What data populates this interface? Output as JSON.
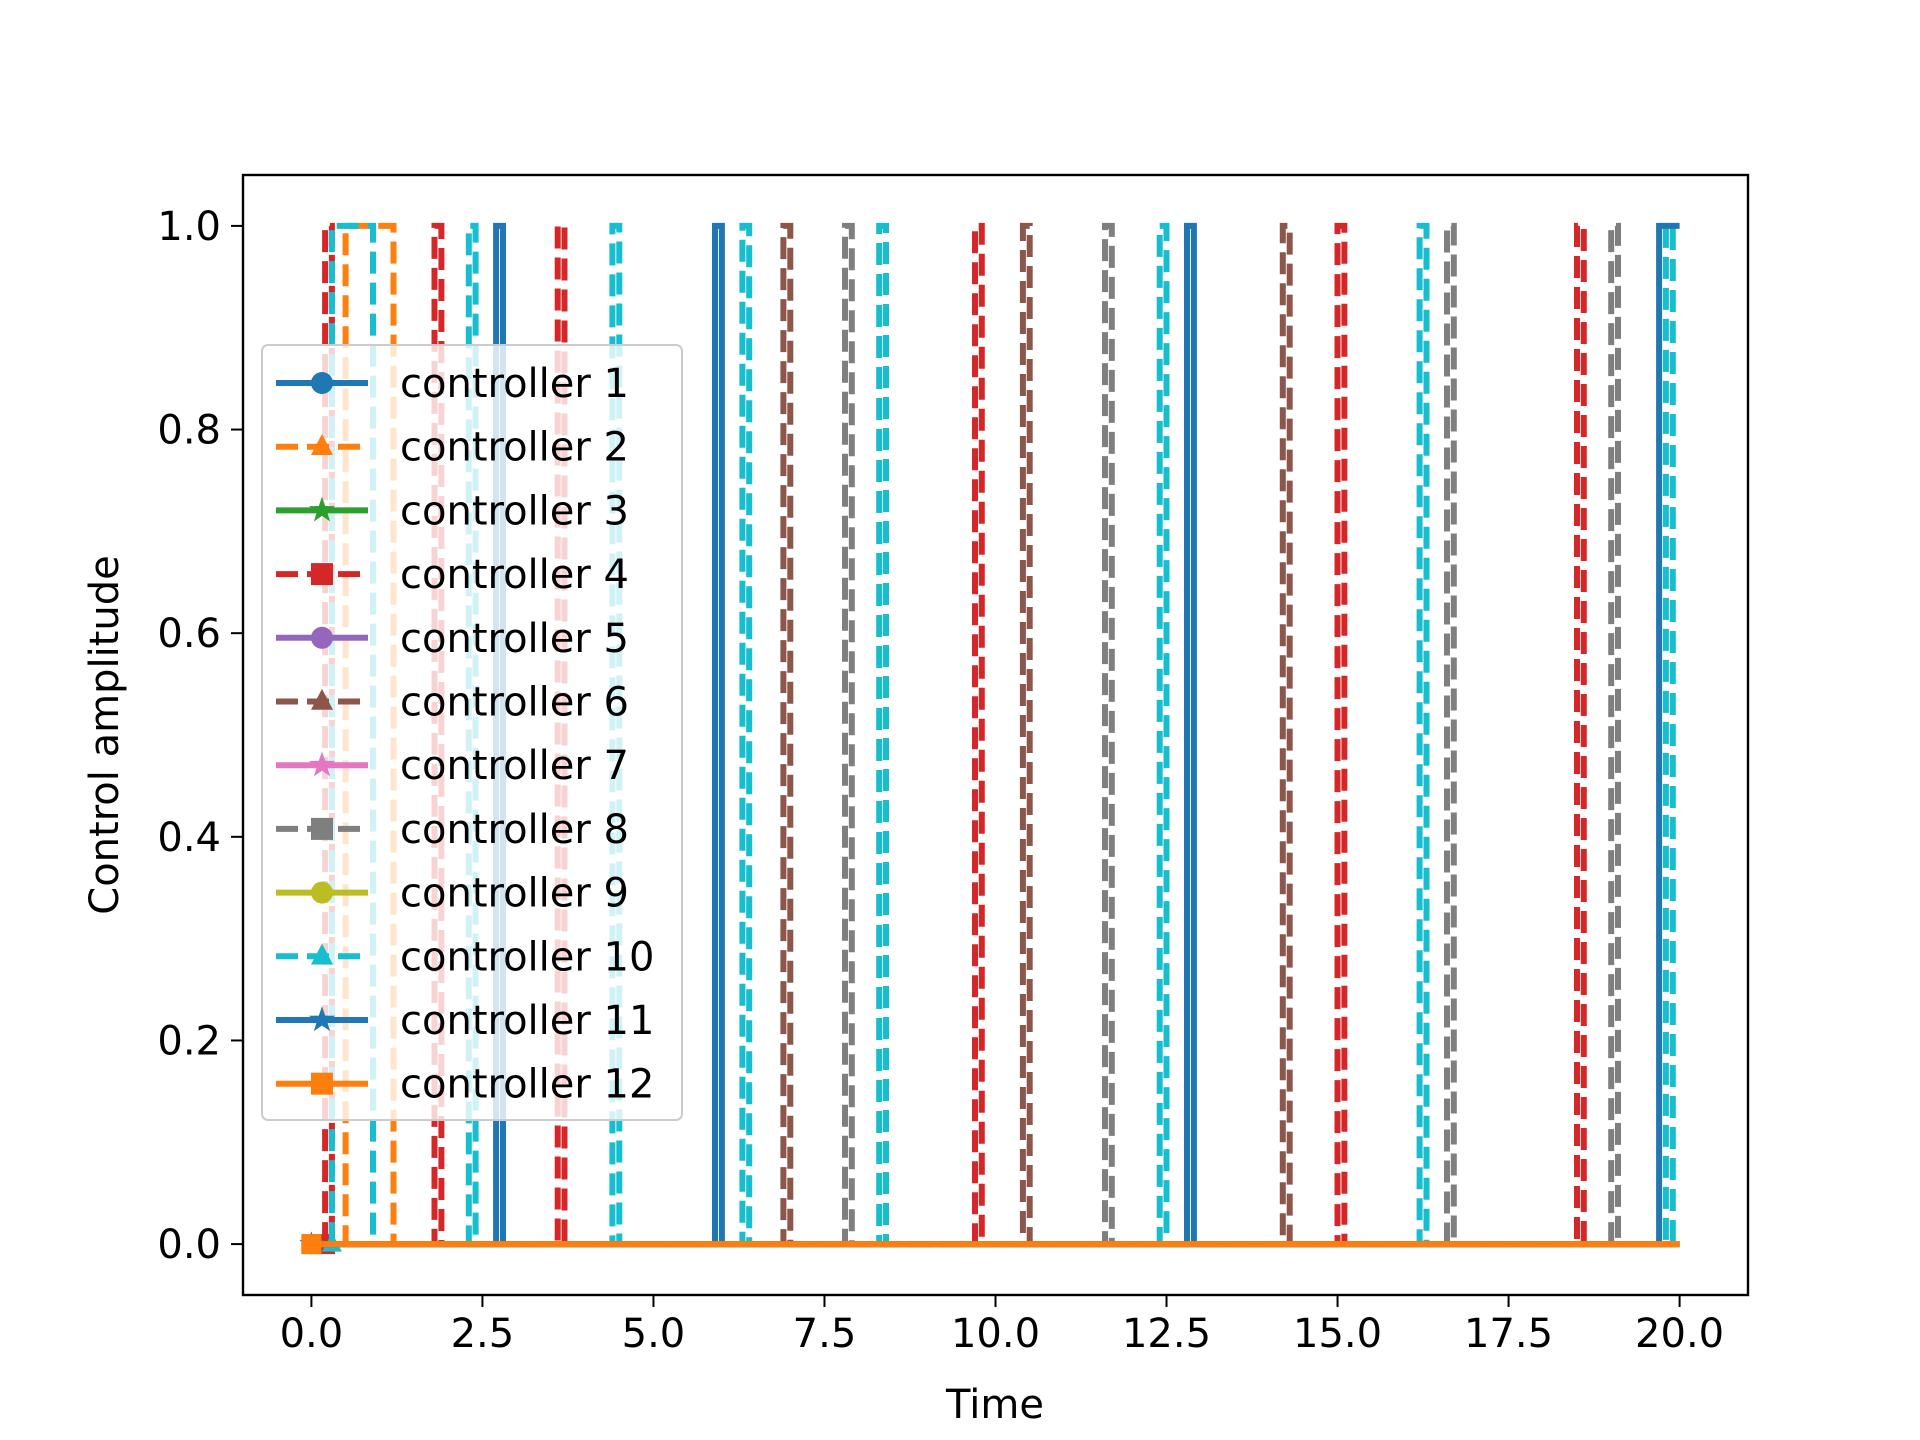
{
  "chart_data": {
    "type": "line",
    "title": "",
    "xlabel": "Time",
    "ylabel": "Control amplitude",
    "xlim": [
      -1.0,
      21.0
    ],
    "ylim": [
      -0.05,
      1.05
    ],
    "xticks": [
      0.0,
      2.5,
      5.0,
      7.5,
      10.0,
      12.5,
      15.0,
      17.5,
      20.0
    ],
    "xtick_labels": [
      "0.0",
      "2.5",
      "5.0",
      "7.5",
      "10.0",
      "12.5",
      "15.0",
      "17.5",
      "20.0"
    ],
    "yticks": [
      0.0,
      0.2,
      0.4,
      0.6,
      0.8,
      1.0
    ],
    "ytick_labels": [
      "0.0",
      "0.2",
      "0.4",
      "0.6",
      "0.8",
      "1.0"
    ],
    "grid": false,
    "legend_position": "center-left",
    "series": [
      {
        "name": "controller 1",
        "color": "#1f77b4",
        "marker": "circle",
        "linestyle": "solid",
        "points": [
          [
            0.0,
            0.0
          ],
          [
            20.0,
            0.0
          ]
        ]
      },
      {
        "name": "controller 2",
        "color": "#ff7f0e",
        "marker": "triangle",
        "linestyle": "dashed",
        "points": [
          [
            0.0,
            0.0
          ],
          [
            0.5,
            0.0
          ],
          [
            0.5,
            1.0
          ],
          [
            1.2,
            1.0
          ],
          [
            1.2,
            0.0
          ],
          [
            20.0,
            0.0
          ]
        ]
      },
      {
        "name": "controller 3",
        "color": "#2ca02c",
        "marker": "star",
        "linestyle": "solid",
        "points": [
          [
            0.0,
            0.0
          ],
          [
            20.0,
            0.0
          ]
        ]
      },
      {
        "name": "controller 4",
        "color": "#d62728",
        "marker": "square",
        "linestyle": "dashed",
        "points": [
          [
            0.2,
            0.0
          ],
          [
            0.2,
            1.0
          ],
          [
            0.3,
            1.0
          ],
          [
            0.3,
            0.0
          ],
          [
            1.8,
            0.0
          ],
          [
            1.8,
            1.0
          ],
          [
            1.9,
            1.0
          ],
          [
            1.9,
            0.0
          ],
          [
            3.6,
            0.0
          ],
          [
            3.6,
            1.0
          ],
          [
            3.7,
            1.0
          ],
          [
            3.7,
            0.0
          ],
          [
            9.7,
            0.0
          ],
          [
            9.7,
            1.0
          ],
          [
            9.8,
            1.0
          ],
          [
            9.8,
            0.0
          ],
          [
            15.0,
            0.0
          ],
          [
            15.0,
            1.0
          ],
          [
            15.1,
            1.0
          ],
          [
            15.1,
            0.0
          ],
          [
            18.5,
            0.0
          ],
          [
            18.5,
            1.0
          ],
          [
            18.6,
            1.0
          ],
          [
            18.6,
            0.0
          ],
          [
            20.0,
            0.0
          ]
        ]
      },
      {
        "name": "controller 5",
        "color": "#9467bd",
        "marker": "circle",
        "linestyle": "solid",
        "points": [
          [
            0.0,
            0.0
          ],
          [
            20.0,
            0.0
          ]
        ]
      },
      {
        "name": "controller 6",
        "color": "#8c564b",
        "marker": "triangle",
        "linestyle": "dashed",
        "points": [
          [
            0.0,
            0.0
          ],
          [
            6.9,
            0.0
          ],
          [
            6.9,
            1.0
          ],
          [
            7.0,
            1.0
          ],
          [
            7.0,
            0.0
          ],
          [
            10.4,
            0.0
          ],
          [
            10.4,
            1.0
          ],
          [
            10.5,
            1.0
          ],
          [
            10.5,
            0.0
          ],
          [
            14.2,
            0.0
          ],
          [
            14.2,
            1.0
          ],
          [
            14.3,
            1.0
          ],
          [
            14.3,
            0.0
          ],
          [
            20.0,
            0.0
          ]
        ]
      },
      {
        "name": "controller 7",
        "color": "#e377c2",
        "marker": "star",
        "linestyle": "solid",
        "points": [
          [
            0.0,
            0.0
          ],
          [
            20.0,
            0.0
          ]
        ]
      },
      {
        "name": "controller 8",
        "color": "#7f7f7f",
        "marker": "square",
        "linestyle": "dashed",
        "points": [
          [
            0.0,
            0.0
          ],
          [
            7.8,
            0.0
          ],
          [
            7.8,
            1.0
          ],
          [
            7.9,
            1.0
          ],
          [
            7.9,
            0.0
          ],
          [
            11.6,
            0.0
          ],
          [
            11.6,
            1.0
          ],
          [
            11.7,
            1.0
          ],
          [
            11.7,
            0.0
          ],
          [
            16.6,
            0.0
          ],
          [
            16.6,
            1.0
          ],
          [
            16.7,
            1.0
          ],
          [
            16.7,
            0.0
          ],
          [
            19.0,
            0.0
          ],
          [
            19.0,
            1.0
          ],
          [
            19.1,
            1.0
          ],
          [
            19.1,
            0.0
          ],
          [
            20.0,
            0.0
          ]
        ]
      },
      {
        "name": "controller 9",
        "color": "#bcbd22",
        "marker": "circle",
        "linestyle": "solid",
        "points": [
          [
            0.0,
            0.0
          ],
          [
            20.0,
            0.0
          ]
        ]
      },
      {
        "name": "controller 10",
        "color": "#17becf",
        "marker": "triangle",
        "linestyle": "dashed",
        "points": [
          [
            0.3,
            0.0
          ],
          [
            0.3,
            1.0
          ],
          [
            0.9,
            1.0
          ],
          [
            0.9,
            0.0
          ],
          [
            2.3,
            0.0
          ],
          [
            2.3,
            1.0
          ],
          [
            2.4,
            1.0
          ],
          [
            2.4,
            0.0
          ],
          [
            4.4,
            0.0
          ],
          [
            4.4,
            1.0
          ],
          [
            4.5,
            1.0
          ],
          [
            4.5,
            0.0
          ],
          [
            6.3,
            0.0
          ],
          [
            6.3,
            1.0
          ],
          [
            6.4,
            1.0
          ],
          [
            6.4,
            0.0
          ],
          [
            8.3,
            0.0
          ],
          [
            8.3,
            1.0
          ],
          [
            8.4,
            1.0
          ],
          [
            8.4,
            0.0
          ],
          [
            12.4,
            0.0
          ],
          [
            12.4,
            1.0
          ],
          [
            12.5,
            1.0
          ],
          [
            12.5,
            0.0
          ],
          [
            16.2,
            0.0
          ],
          [
            16.2,
            1.0
          ],
          [
            16.3,
            1.0
          ],
          [
            16.3,
            0.0
          ],
          [
            19.8,
            0.0
          ],
          [
            19.8,
            1.0
          ],
          [
            19.9,
            1.0
          ],
          [
            19.9,
            0.0
          ],
          [
            20.0,
            0.0
          ]
        ]
      },
      {
        "name": "controller 11",
        "color": "#1f77b4",
        "marker": "star",
        "linestyle": "solid",
        "points": [
          [
            0.0,
            0.0
          ],
          [
            2.7,
            0.0
          ],
          [
            2.7,
            1.0
          ],
          [
            2.8,
            1.0
          ],
          [
            2.8,
            0.0
          ],
          [
            5.9,
            0.0
          ],
          [
            5.9,
            1.0
          ],
          [
            6.0,
            1.0
          ],
          [
            6.0,
            0.0
          ],
          [
            12.8,
            0.0
          ],
          [
            12.8,
            1.0
          ],
          [
            12.9,
            1.0
          ],
          [
            12.9,
            0.0
          ],
          [
            19.7,
            0.0
          ],
          [
            19.7,
            1.0
          ],
          [
            20.0,
            1.0
          ]
        ]
      },
      {
        "name": "controller 12",
        "color": "#ff7f0e",
        "marker": "square",
        "linestyle": "solid",
        "points": [
          [
            0.0,
            0.0
          ],
          [
            20.0,
            0.0
          ]
        ]
      }
    ]
  }
}
